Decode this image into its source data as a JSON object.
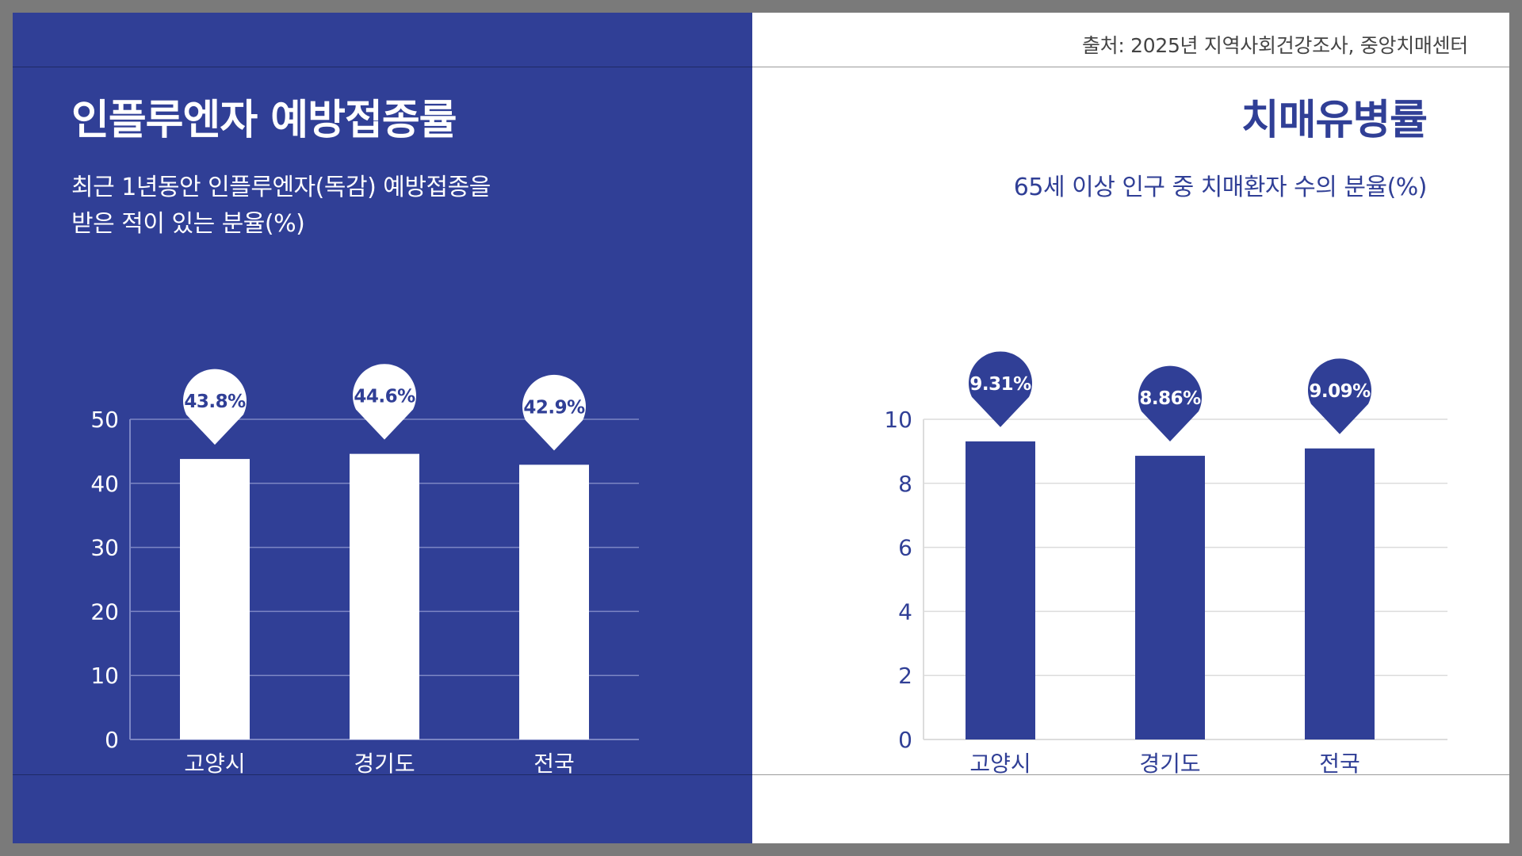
{
  "source_note": "출처: 2025년 지역사회건강조사, 중앙치매센터",
  "left": {
    "title": "인플루엔자 예방접종률",
    "subtitle_line1": "최근 1년동안 인플루엔자(독감) 예방접종을",
    "subtitle_line2": "받은 적이 있는 분율(%)"
  },
  "right": {
    "title": "치매유병률",
    "subtitle": "65세 이상 인구 중 치매환자 수의 분율(%)"
  },
  "colors": {
    "navy": "#303f96",
    "white": "#ffffff",
    "grid_left": "#7c86c4",
    "grid_right": "#dcdcdc"
  },
  "chart_data": [
    {
      "type": "bar",
      "title": "인플루엔자 예방접종률",
      "categories": [
        "고양시",
        "경기도",
        "전국"
      ],
      "values": [
        43.8,
        44.6,
        42.9
      ],
      "value_labels": [
        "43.8%",
        "44.6%",
        "42.9%"
      ],
      "ylim": [
        0,
        50
      ],
      "yticks": [
        0,
        10,
        20,
        30,
        40,
        50
      ],
      "grid": true,
      "bar_color": "#ffffff",
      "label_style": "pin"
    },
    {
      "type": "bar",
      "title": "치매유병률",
      "categories": [
        "고양시",
        "경기도",
        "전국"
      ],
      "values": [
        9.31,
        8.86,
        9.09
      ],
      "value_labels": [
        "9.31%",
        "8.86%",
        "9.09%"
      ],
      "ylim": [
        0,
        10
      ],
      "yticks": [
        0,
        2,
        4,
        6,
        8,
        10
      ],
      "grid": true,
      "bar_color": "#303f96",
      "label_style": "pin"
    }
  ]
}
